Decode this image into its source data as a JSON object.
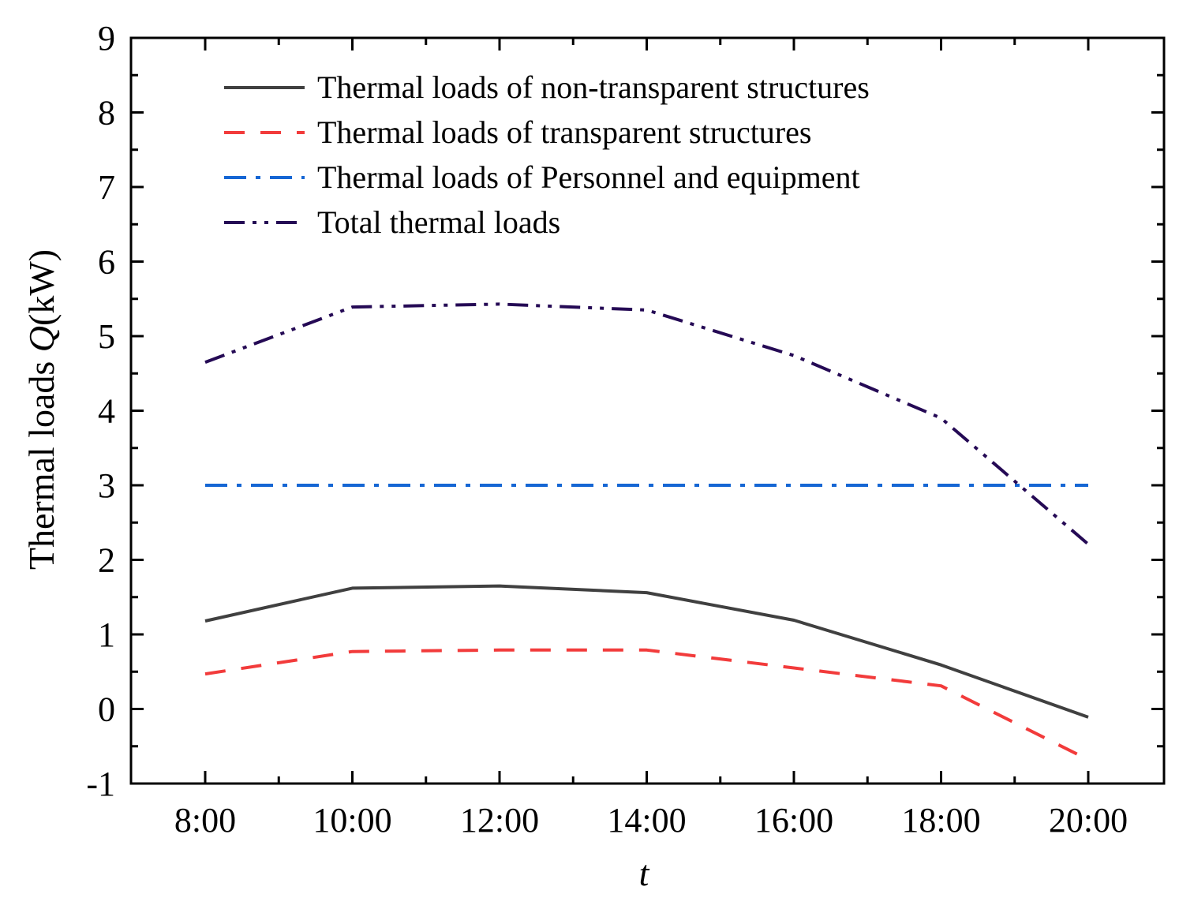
{
  "chart_data": {
    "type": "line",
    "title": "",
    "xlabel": "t",
    "ylabel_prefix": "Thermal loads ",
    "ylabel_var": "Q",
    "ylabel_unit": "(kW)",
    "categories": [
      "8:00",
      "10:00",
      "12:00",
      "14:00",
      "16:00",
      "18:00",
      "20:00"
    ],
    "ylim": [
      -1,
      9
    ],
    "yticks": [
      -1,
      0,
      1,
      2,
      3,
      4,
      5,
      6,
      7,
      8,
      9
    ],
    "ytick_labels": [
      "-1",
      "0",
      "1",
      "2",
      "3",
      "4",
      "5",
      "6",
      "7",
      "8",
      "9"
    ],
    "grid": false,
    "legend_position": "top-left",
    "series": [
      {
        "name": "Thermal loads of non-transparent structures",
        "values": [
          1.18,
          1.62,
          1.65,
          1.56,
          1.19,
          0.59,
          -0.11
        ],
        "color": "#404040",
        "style": "solid"
      },
      {
        "name": "Thermal loads of transparent structures",
        "values": [
          0.47,
          0.77,
          0.79,
          0.79,
          0.55,
          0.31,
          -0.68
        ],
        "color": "#f23b3b",
        "style": "dash"
      },
      {
        "name": "Thermal loads of Personnel and equipment",
        "values": [
          3.0,
          3.0,
          3.0,
          3.0,
          3.0,
          3.0,
          3.0
        ],
        "color": "#1566d4",
        "style": "dashdot"
      },
      {
        "name": "Total thermal loads",
        "values": [
          4.65,
          5.39,
          5.43,
          5.35,
          4.74,
          3.9,
          2.21
        ],
        "color": "#250a55",
        "style": "dashdotdot"
      }
    ]
  }
}
